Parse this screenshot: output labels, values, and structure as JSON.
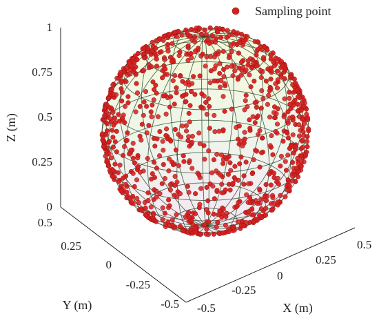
{
  "chart_data": {
    "type": "scatter",
    "projection": "3d",
    "title": "",
    "xlabel": "X (m)",
    "ylabel": "Y (m)",
    "zlabel": "Z (m)",
    "xlim": [
      -0.5,
      0.5
    ],
    "ylim": [
      -0.5,
      0.5
    ],
    "zlim": [
      0,
      1
    ],
    "x_ticks": [
      "-0.5",
      "-0.25",
      "0",
      "0.25",
      "0.5"
    ],
    "y_ticks": [
      "-0.5",
      "-0.25",
      "0",
      "0.25",
      "0.5"
    ],
    "z_ticks": [
      "0",
      "0.25",
      "0.5",
      "0.75",
      "1"
    ],
    "grid": false,
    "legend_position": "top-right",
    "series": [
      {
        "name": "Sampling point",
        "shape": "sphere",
        "center": [
          0,
          0,
          0.5
        ],
        "radius": 0.5,
        "approx_point_count": 1000,
        "color": "#d42020"
      }
    ],
    "wireframe": {
      "meridians": 20,
      "parallels": 10,
      "line_color": "#1a3a1a"
    },
    "colors": {
      "marker": "#d42020",
      "marker_edge": "#9a1010",
      "wire": "#1a3a1a",
      "sphere_top": "#f6f9d8",
      "sphere_bottom": "#f6e6f4"
    }
  }
}
